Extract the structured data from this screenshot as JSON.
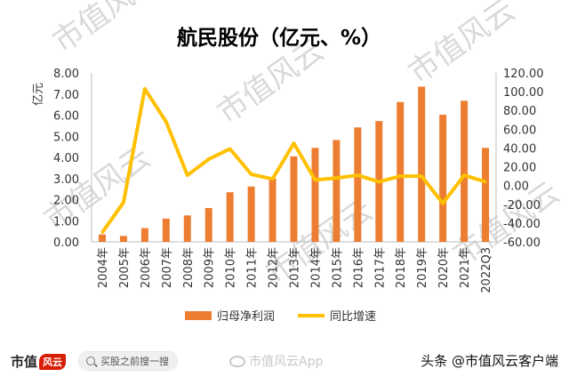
{
  "chart_data": {
    "type": "bar+line",
    "title": "航民股份（亿元、%）",
    "ylabel_left": "亿元",
    "categories": [
      "2004年",
      "2005年",
      "2006年",
      "2007年",
      "2008年",
      "2009年",
      "2010年",
      "2011年",
      "2012年",
      "2013年",
      "2014年",
      "2015年",
      "2016年",
      "2017年",
      "2018年",
      "2019年",
      "2020年",
      "2021年",
      "2022Q3"
    ],
    "series": [
      {
        "name": "归母净利润",
        "type": "bar",
        "axis": "left",
        "color": "#ed7d31",
        "values": [
          0.35,
          0.28,
          0.65,
          1.1,
          1.25,
          1.6,
          2.35,
          2.62,
          3.0,
          4.05,
          4.45,
          4.82,
          5.42,
          5.72,
          6.62,
          7.35,
          6.02,
          6.68,
          4.45
        ]
      },
      {
        "name": "同比增速",
        "type": "line",
        "axis": "right",
        "color": "#ffc000",
        "values": [
          -50,
          -18,
          103,
          68,
          11,
          28,
          39,
          12,
          7,
          45,
          6,
          8,
          11,
          4,
          10,
          10,
          -19,
          11,
          4
        ]
      }
    ],
    "ylim_left": [
      0,
      8
    ],
    "yticks_left": [
      "0.00",
      "1.00",
      "2.00",
      "3.00",
      "4.00",
      "5.00",
      "6.00",
      "7.00",
      "8.00"
    ],
    "ylim_right": [
      -60,
      120
    ],
    "yticks_right": [
      "-60.00",
      "-40.00",
      "-20.00",
      "0.00",
      "20.00",
      "40.00",
      "60.00",
      "80.00",
      "100.00",
      "120.00"
    ],
    "grid": false,
    "legend_position": "bottom"
  },
  "watermark": {
    "text": "市值风云"
  },
  "footer": {
    "logo_text": "市值",
    "logo_mark": "风云",
    "search_text": "买股之前搜一搜",
    "weibo_text": "市值风云App",
    "toutiao_text": "头条 @市值风云客户端"
  },
  "colors": {
    "bar": "#ed7d31",
    "line": "#ffc000",
    "axis": "#bfbfbf",
    "text": "#333333"
  }
}
